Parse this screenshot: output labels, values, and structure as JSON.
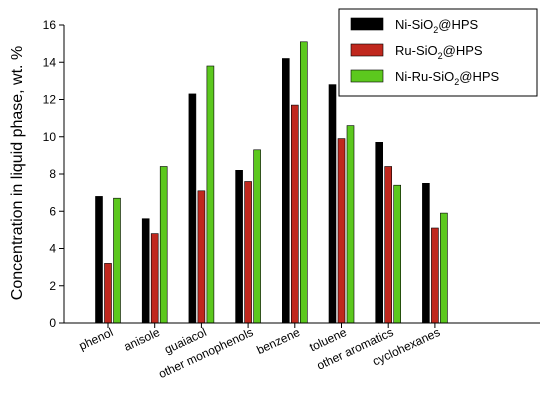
{
  "chart_data": {
    "type": "bar",
    "title": "",
    "xlabel": "",
    "ylabel": "Concentration in liquid phase, wt. %",
    "ylim": [
      0,
      16
    ],
    "yticks": [
      0,
      2,
      4,
      6,
      8,
      10,
      12,
      14,
      16
    ],
    "grid": false,
    "legend_position": "top-right",
    "categories": [
      "phenol",
      "anisole",
      "guaiacol",
      "other monophenols",
      "benzene",
      "toluene",
      "other aromatics",
      "cyclohexanes"
    ],
    "series": [
      {
        "name": "Ni-SiO2@HPS",
        "legend_main": "Ni-SiO",
        "legend_sub": "2",
        "legend_tail": "@HPS",
        "color": "#000000",
        "values": [
          6.8,
          5.6,
          12.3,
          8.2,
          14.2,
          12.8,
          9.7,
          7.5
        ]
      },
      {
        "name": "Ru-SiO2@HPS",
        "legend_main": "Ru-SiO",
        "legend_sub": "2",
        "legend_tail": "@HPS",
        "color": "#c0281e",
        "values": [
          3.2,
          4.8,
          7.1,
          7.6,
          11.7,
          9.9,
          8.4,
          5.1
        ]
      },
      {
        "name": "Ni-Ru-SiO2@HPS",
        "legend_main": "Ni-Ru-SiO",
        "legend_sub": "2",
        "legend_tail": "@HPS",
        "color": "#5cc81e",
        "values": [
          6.7,
          8.4,
          13.8,
          9.3,
          15.1,
          10.6,
          7.4,
          5.9
        ]
      }
    ]
  }
}
